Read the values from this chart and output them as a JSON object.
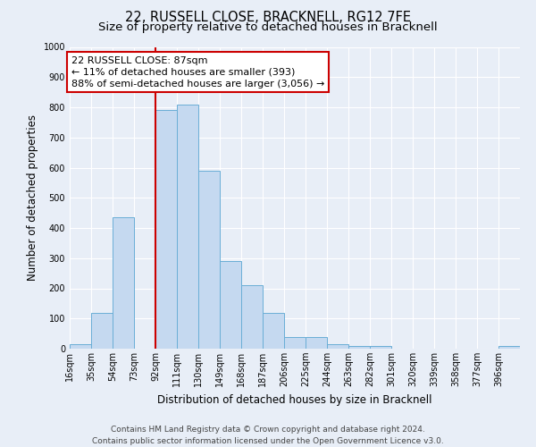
{
  "title": "22, RUSSELL CLOSE, BRACKNELL, RG12 7FE",
  "subtitle": "Size of property relative to detached houses in Bracknell",
  "xlabel": "Distribution of detached houses by size in Bracknell",
  "ylabel": "Number of detached properties",
  "bar_labels": [
    "16sqm",
    "35sqm",
    "54sqm",
    "73sqm",
    "92sqm",
    "111sqm",
    "130sqm",
    "149sqm",
    "168sqm",
    "187sqm",
    "206sqm",
    "225sqm",
    "244sqm",
    "263sqm",
    "282sqm",
    "301sqm",
    "320sqm",
    "339sqm",
    "358sqm",
    "377sqm",
    "396sqm"
  ],
  "bar_values": [
    15,
    120,
    435,
    0,
    790,
    810,
    590,
    290,
    210,
    120,
    40,
    40,
    15,
    10,
    10,
    0,
    0,
    0,
    0,
    0,
    10
  ],
  "bar_color": "#c5d9f0",
  "bar_edgecolor": "#6aaed6",
  "vline_color": "#cc0000",
  "annotation_line1": "22 RUSSELL CLOSE: 87sqm",
  "annotation_line2": "← 11% of detached houses are smaller (393)",
  "annotation_line3": "88% of semi-detached houses are larger (3,056) →",
  "annotation_box_edgecolor": "#cc0000",
  "annotation_box_facecolor": "#ffffff",
  "ylim": [
    0,
    1000
  ],
  "yticks": [
    0,
    100,
    200,
    300,
    400,
    500,
    600,
    700,
    800,
    900,
    1000
  ],
  "footer_line1": "Contains HM Land Registry data © Crown copyright and database right 2024.",
  "footer_line2": "Contains public sector information licensed under the Open Government Licence v3.0.",
  "bg_color": "#e8eef7",
  "plot_bg_color": "#e8eef7",
  "grid_color": "#ffffff",
  "title_fontsize": 10.5,
  "subtitle_fontsize": 9.5,
  "axis_label_fontsize": 8.5,
  "tick_fontsize": 7,
  "annotation_fontsize": 8,
  "footer_fontsize": 6.5,
  "bin_width": 19
}
